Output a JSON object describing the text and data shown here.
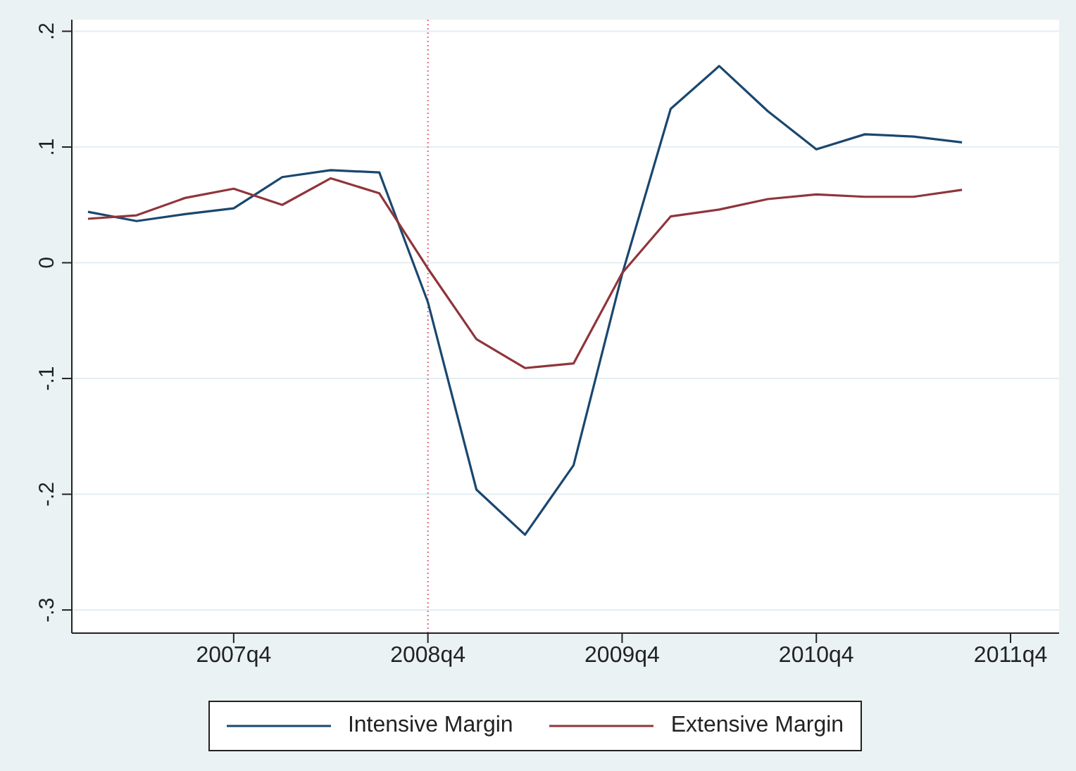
{
  "chart_data": {
    "type": "line",
    "x": [
      "2007-01",
      "2007-04",
      "2007-07",
      "2007-10",
      "2008-01",
      "2008-04",
      "2008-07",
      "2008-10",
      "2009-01",
      "2009-04",
      "2009-07",
      "2009-10",
      "2010-01",
      "2010-04",
      "2010-07",
      "2010-10",
      "2011-01",
      "2011-04",
      "2011-07"
    ],
    "series": [
      {
        "name": "Intensive Margin",
        "color": "#1a476f",
        "values": [
          0.044,
          0.036,
          0.042,
          0.047,
          0.074,
          0.08,
          0.078,
          -0.034,
          -0.196,
          -0.235,
          -0.175,
          -0.01,
          0.133,
          0.17,
          0.131,
          0.098,
          0.111,
          0.109,
          0.104
        ]
      },
      {
        "name": "Extensive Margin",
        "color": "#90353b",
        "values": [
          0.038,
          0.041,
          0.056,
          0.064,
          0.05,
          0.073,
          0.06,
          -0.005,
          -0.066,
          -0.091,
          -0.087,
          -0.009,
          0.04,
          0.046,
          0.055,
          0.059,
          0.057,
          0.057,
          0.063
        ]
      }
    ],
    "xlim": [
      "2006-12-01",
      "2012-01-01"
    ],
    "xticks": [
      {
        "value": "2007-10",
        "label": "2007q4"
      },
      {
        "value": "2008-10",
        "label": "2008q4"
      },
      {
        "value": "2009-10",
        "label": "2009q4"
      },
      {
        "value": "2010-10",
        "label": "2010q4"
      },
      {
        "value": "2011-10",
        "label": "2011q4"
      }
    ],
    "ylim": [
      -0.32,
      0.21
    ],
    "yticks": [
      {
        "value": -0.3,
        "label": "-.3"
      },
      {
        "value": -0.2,
        "label": "-.2"
      },
      {
        "value": -0.1,
        "label": "-.1"
      },
      {
        "value": 0,
        "label": "0"
      },
      {
        "value": 0.1,
        "label": ".1"
      },
      {
        "value": 0.2,
        "label": ".2"
      }
    ],
    "ref_lines": [
      {
        "axis": "x",
        "value": "2008-10",
        "color": "#e8647a",
        "line_style": "dotted"
      }
    ],
    "grid": "y",
    "legend": "bottom",
    "marker": "none",
    "line_style": "solid"
  }
}
